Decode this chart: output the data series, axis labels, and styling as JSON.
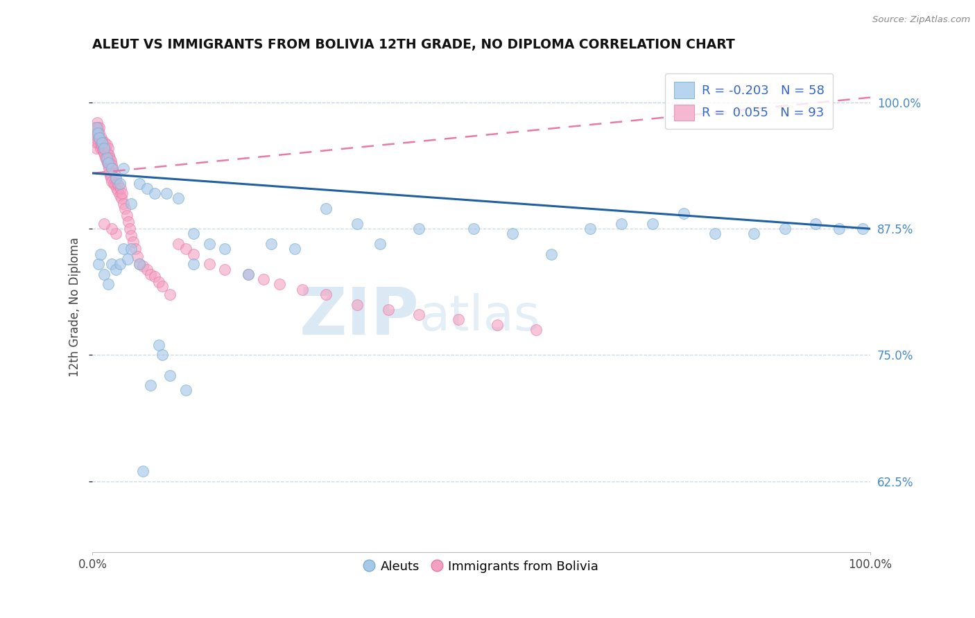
{
  "title": "ALEUT VS IMMIGRANTS FROM BOLIVIA 12TH GRADE, NO DIPLOMA CORRELATION CHART",
  "source": "Source: ZipAtlas.com",
  "ylabel": "12th Grade, No Diploma",
  "ytick_labels": [
    "62.5%",
    "75.0%",
    "87.5%",
    "100.0%"
  ],
  "ytick_values": [
    0.625,
    0.75,
    0.875,
    1.0
  ],
  "xlim": [
    0.0,
    1.0
  ],
  "ylim": [
    0.555,
    1.04
  ],
  "legend_blue_r": "-0.203",
  "legend_blue_n": "58",
  "legend_pink_r": "0.055",
  "legend_pink_n": "93",
  "blue_color": "#a8c8e8",
  "blue_edge_color": "#7ab0d4",
  "pink_color": "#f4a0c0",
  "pink_edge_color": "#e87aaa",
  "trend_blue_color": "#2060a0",
  "trend_pink_color": "#e87aaa",
  "watermark_zip": "ZIP",
  "watermark_atlas": "atlas",
  "aleuts_x": [
    0.005,
    0.007,
    0.009,
    0.012,
    0.015,
    0.018,
    0.02,
    0.025,
    0.03,
    0.035,
    0.04,
    0.05,
    0.06,
    0.07,
    0.08,
    0.095,
    0.11,
    0.13,
    0.15,
    0.17,
    0.2,
    0.23,
    0.26,
    0.3,
    0.34,
    0.37,
    0.42,
    0.49,
    0.54,
    0.59,
    0.64,
    0.68,
    0.72,
    0.76,
    0.8,
    0.85,
    0.89,
    0.93,
    0.96,
    0.99,
    0.008,
    0.01,
    0.015,
    0.02,
    0.025,
    0.03,
    0.035,
    0.04,
    0.045,
    0.05,
    0.06,
    0.085,
    0.1,
    0.12,
    0.065,
    0.075,
    0.09,
    0.13
  ],
  "aleuts_y": [
    0.975,
    0.97,
    0.965,
    0.96,
    0.955,
    0.945,
    0.94,
    0.935,
    0.925,
    0.92,
    0.935,
    0.9,
    0.92,
    0.915,
    0.91,
    0.91,
    0.905,
    0.87,
    0.86,
    0.855,
    0.83,
    0.86,
    0.855,
    0.895,
    0.88,
    0.86,
    0.875,
    0.875,
    0.87,
    0.85,
    0.875,
    0.88,
    0.88,
    0.89,
    0.87,
    0.87,
    0.875,
    0.88,
    0.875,
    0.875,
    0.84,
    0.85,
    0.83,
    0.82,
    0.84,
    0.835,
    0.84,
    0.855,
    0.845,
    0.855,
    0.84,
    0.76,
    0.73,
    0.715,
    0.635,
    0.72,
    0.75,
    0.84
  ],
  "bolivia_x": [
    0.002,
    0.003,
    0.004,
    0.005,
    0.005,
    0.006,
    0.007,
    0.007,
    0.008,
    0.008,
    0.009,
    0.009,
    0.01,
    0.01,
    0.011,
    0.011,
    0.012,
    0.012,
    0.013,
    0.013,
    0.014,
    0.014,
    0.015,
    0.015,
    0.016,
    0.016,
    0.017,
    0.017,
    0.018,
    0.018,
    0.019,
    0.019,
    0.02,
    0.02,
    0.021,
    0.021,
    0.022,
    0.022,
    0.023,
    0.023,
    0.024,
    0.024,
    0.025,
    0.025,
    0.026,
    0.027,
    0.028,
    0.029,
    0.03,
    0.031,
    0.032,
    0.033,
    0.034,
    0.035,
    0.036,
    0.037,
    0.038,
    0.04,
    0.042,
    0.044,
    0.046,
    0.048,
    0.05,
    0.052,
    0.055,
    0.058,
    0.06,
    0.065,
    0.07,
    0.075,
    0.08,
    0.085,
    0.09,
    0.1,
    0.11,
    0.12,
    0.13,
    0.15,
    0.17,
    0.2,
    0.22,
    0.24,
    0.27,
    0.3,
    0.34,
    0.38,
    0.42,
    0.47,
    0.52,
    0.57,
    0.03,
    0.025,
    0.015
  ],
  "bolivia_y": [
    0.975,
    0.965,
    0.97,
    0.96,
    0.955,
    0.98,
    0.975,
    0.97,
    0.965,
    0.96,
    0.975,
    0.97,
    0.96,
    0.955,
    0.965,
    0.958,
    0.962,
    0.957,
    0.96,
    0.953,
    0.958,
    0.952,
    0.955,
    0.95,
    0.96,
    0.948,
    0.955,
    0.945,
    0.958,
    0.942,
    0.95,
    0.94,
    0.955,
    0.938,
    0.948,
    0.935,
    0.945,
    0.93,
    0.94,
    0.928,
    0.942,
    0.925,
    0.938,
    0.922,
    0.935,
    0.92,
    0.93,
    0.918,
    0.925,
    0.915,
    0.92,
    0.912,
    0.918,
    0.908,
    0.915,
    0.905,
    0.91,
    0.9,
    0.895,
    0.888,
    0.882,
    0.875,
    0.868,
    0.862,
    0.855,
    0.848,
    0.84,
    0.838,
    0.835,
    0.83,
    0.828,
    0.822,
    0.818,
    0.81,
    0.86,
    0.855,
    0.85,
    0.84,
    0.835,
    0.83,
    0.825,
    0.82,
    0.815,
    0.81,
    0.8,
    0.795,
    0.79,
    0.785,
    0.78,
    0.775,
    0.87,
    0.875,
    0.88
  ],
  "blue_trend_x": [
    0.0,
    1.0
  ],
  "blue_trend_y": [
    0.93,
    0.875
  ],
  "pink_trend_x": [
    0.0,
    1.0
  ],
  "pink_trend_y": [
    0.93,
    1.005
  ]
}
